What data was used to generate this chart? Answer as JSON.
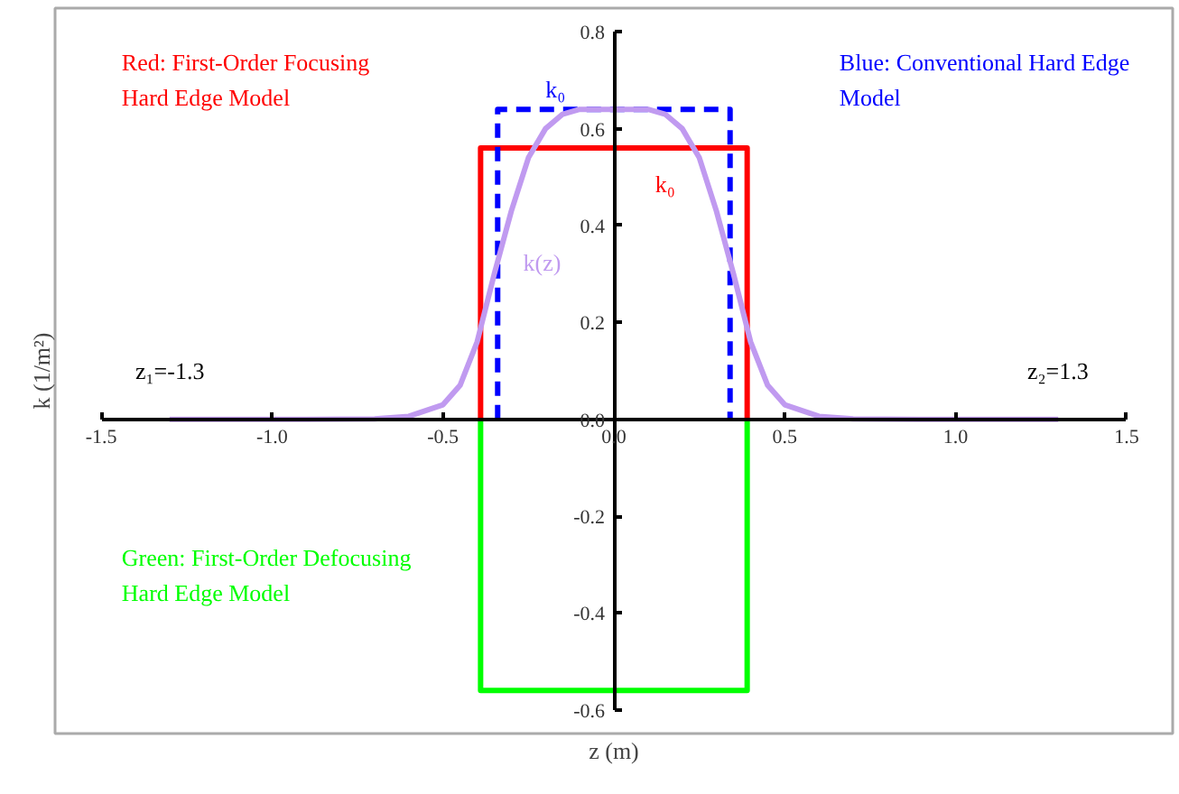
{
  "chart_data": {
    "type": "line",
    "xlabel": "z (m)",
    "ylabel": "k (1/m²)",
    "xlim": [
      -1.5,
      1.5
    ],
    "ylim": [
      -0.6,
      0.8
    ],
    "xticks": [
      {
        "value": -1.5,
        "label": "-1.5"
      },
      {
        "value": -1.0,
        "label": "-1.0"
      },
      {
        "value": -0.5,
        "label": "-0.5"
      },
      {
        "value": 0,
        "label": "0.0"
      },
      {
        "value": 0.5,
        "label": "0.5"
      },
      {
        "value": 1.0,
        "label": "1.0"
      },
      {
        "value": 1.5,
        "label": "1.5"
      }
    ],
    "yticks": [
      -0.6,
      -0.4,
      -0.2,
      {
        "value": 0,
        "label": "0.0"
      },
      0.2,
      0.4,
      0.6,
      0.8
    ],
    "grid": false,
    "marker": "none",
    "series": [
      {
        "color": "#ff0000",
        "x": [
          -0.39,
          -0.39,
          0.39,
          0.39
        ],
        "values": [
          0,
          0.56,
          0.56,
          0
        ],
        "line_style": "solid"
      },
      {
        "color": "#0000ff",
        "x": [
          -0.34,
          -0.34,
          0.34,
          0.34
        ],
        "values": [
          0,
          0.64,
          0.64,
          0
        ],
        "line_style": "dashed"
      },
      {
        "color": "#00ff00",
        "x": [
          -0.39,
          -0.39,
          0.39,
          0.39
        ],
        "values": [
          0,
          -0.56,
          -0.56,
          0
        ],
        "line_style": "solid"
      },
      {
        "color": "#c09af0",
        "x": [
          -1.3,
          -0.9,
          -0.7,
          -0.6,
          -0.5,
          -0.45,
          -0.4,
          -0.35,
          -0.3,
          -0.25,
          -0.2,
          -0.15,
          -0.1,
          0,
          0.1,
          0.15,
          0.2,
          0.25,
          0.3,
          0.35,
          0.4,
          0.45,
          0.5,
          0.6,
          0.7,
          0.9,
          1.3
        ],
        "values": [
          0,
          0,
          0.001,
          0.006,
          0.03,
          0.07,
          0.16,
          0.3,
          0.43,
          0.54,
          0.6,
          0.63,
          0.64,
          0.64,
          0.64,
          0.63,
          0.6,
          0.54,
          0.43,
          0.3,
          0.16,
          0.07,
          0.03,
          0.006,
          0.001,
          0,
          0
        ],
        "line_style": "solid"
      }
    ],
    "annotations": [
      "k₀",
      "k₀",
      "k(z)",
      "z₁=-1.3",
      "z₂=1.3",
      "Red: First-Order Focusing\nHard Edge Model",
      "Blue: Conventional Hard Edge\nModel",
      "Green: First-Order Defocusing\nHard Edge Model"
    ]
  }
}
